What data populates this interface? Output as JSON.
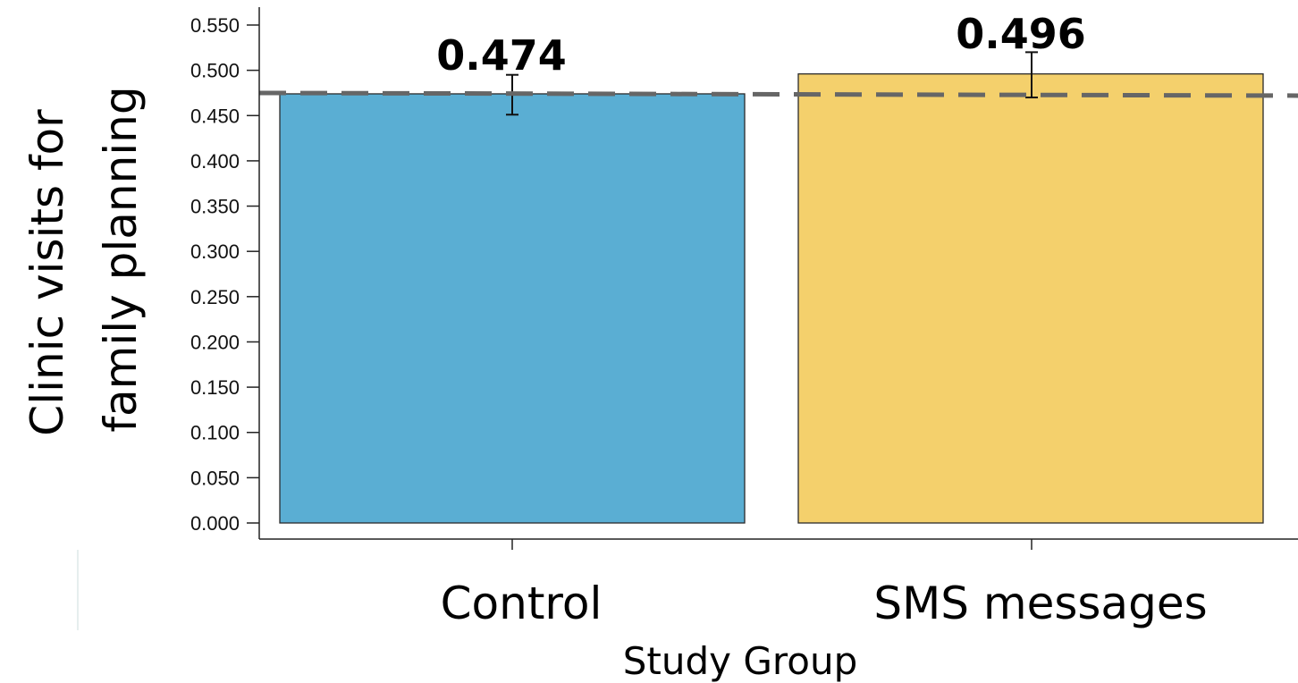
{
  "chart_data": {
    "type": "bar",
    "categories": [
      "Control",
      "SMS messages"
    ],
    "values": [
      0.474,
      0.496
    ],
    "data_labels": [
      "0.474",
      "0.496"
    ],
    "error_bars": [
      {
        "low": 0.451,
        "high": 0.495
      },
      {
        "low": 0.47,
        "high": 0.52
      }
    ],
    "reference_line": {
      "value": 0.474,
      "style": "dashed"
    },
    "xlabel": "Study Group",
    "ylabel_lines": [
      "Clinic visits for",
      "family planning"
    ],
    "ylim": [
      0,
      0.55
    ],
    "yticks": [
      "0.000",
      "0.050",
      "0.100",
      "0.150",
      "0.200",
      "0.250",
      "0.300",
      "0.350",
      "0.400",
      "0.450",
      "0.500",
      "0.550"
    ],
    "grid": false,
    "colors": {
      "Control": "#5aaed3",
      "SMS messages": "#f4d06c",
      "reference_line": "#666666",
      "error_bar": "#111111"
    }
  }
}
